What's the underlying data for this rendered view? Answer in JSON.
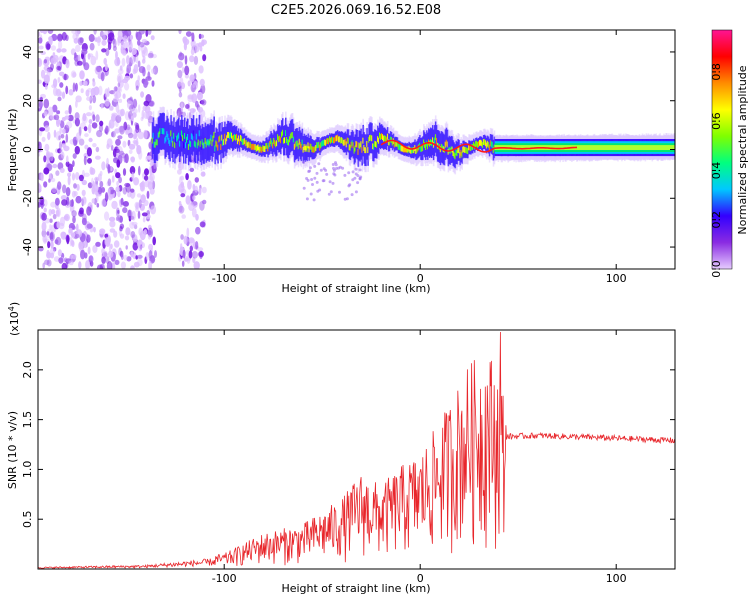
{
  "title": "C2E5.2026.069.16.52.E08",
  "chart_data": [
    {
      "type": "heatmap",
      "id": "spectrogram",
      "xlabel": "Height of straight line (km)",
      "ylabel": "Frequency (Hz)",
      "xlim": [
        -195,
        130
      ],
      "ylim": [
        -49,
        49
      ],
      "xticks": [
        -100,
        0,
        100
      ],
      "yticks": [
        -40,
        -20,
        0,
        20,
        40
      ],
      "ytick_labels": [
        "-40",
        "-20",
        "0",
        "20",
        "40"
      ],
      "xtick_labels": [
        "-100",
        "0",
        "100"
      ],
      "colorbar": {
        "label": "Normalized spectral amplitude",
        "range": [
          0.0,
          0.97
        ],
        "ticks": [
          0.0,
          0.2,
          0.4,
          0.6,
          0.8
        ],
        "tick_labels": [
          "0.0",
          "0.2",
          "0.4",
          "0.6",
          "0.8"
        ],
        "colors": [
          "#e6ccff",
          "#8a2be2",
          "#3300ff",
          "#00c8ff",
          "#00ff7f",
          "#7fff00",
          "#ffff00",
          "#ff8c00",
          "#ff0000",
          "#ff1493"
        ]
      },
      "regions": [
        {
          "name": "noise",
          "x_range": [
            -195,
            -135
          ],
          "amplitude": 0.1
        },
        {
          "name": "noise-gap",
          "x_range": [
            -123,
            -110
          ],
          "amplitude": 0.1
        },
        {
          "name": "turbulent-signal",
          "x_range": [
            -137,
            -105
          ],
          "center_hz": 5,
          "amplitude": 0.4
        },
        {
          "name": "wavy-signal",
          "x_range": [
            -105,
            38
          ],
          "center_hz": 2,
          "amplitude": 0.6
        },
        {
          "name": "steady-signal",
          "x_range": [
            38,
            130
          ],
          "center_hz": 0.5,
          "amplitude": 0.9
        }
      ],
      "ridge": [
        {
          "x": -137,
          "f": 5
        },
        {
          "x": -120,
          "f": 4
        },
        {
          "x": -105,
          "f": 4
        },
        {
          "x": -90,
          "f": 2
        },
        {
          "x": -70,
          "f": 3
        },
        {
          "x": -50,
          "f": 2
        },
        {
          "x": -30,
          "f": 3
        },
        {
          "x": -10,
          "f": 2
        },
        {
          "x": 10,
          "f": 1
        },
        {
          "x": 30,
          "f": 0.5
        },
        {
          "x": 60,
          "f": 0.5
        },
        {
          "x": 100,
          "f": 0.8
        },
        {
          "x": 130,
          "f": 1
        }
      ]
    },
    {
      "type": "line",
      "id": "snr",
      "xlabel": "Height of straight line (km)",
      "ylabel": "SNR (10 * v/v)",
      "multiplier": "(x10",
      "multiplier_exp": "4",
      "multiplier_close": ")",
      "xlim": [
        -195,
        130
      ],
      "ylim": [
        0,
        2.4
      ],
      "xticks": [
        -100,
        0,
        100
      ],
      "xtick_labels": [
        "-100",
        "0",
        "100"
      ],
      "yticks": [
        0.5,
        1.0,
        1.5,
        2.0
      ],
      "ytick_labels": [
        "0.5",
        "1.0",
        "1.5",
        "2.0"
      ],
      "color": "#e8262b",
      "envelope": [
        {
          "x": -195,
          "y": 0.02
        },
        {
          "x": -140,
          "y": 0.04
        },
        {
          "x": -125,
          "y": 0.07
        },
        {
          "x": -100,
          "y": 0.12
        },
        {
          "x": -80,
          "y": 0.28
        },
        {
          "x": -60,
          "y": 0.35
        },
        {
          "x": -40,
          "y": 0.55
        },
        {
          "x": -30,
          "y": 0.75
        },
        {
          "x": -20,
          "y": 0.65
        },
        {
          "x": -10,
          "y": 0.8
        },
        {
          "x": 0,
          "y": 0.9
        },
        {
          "x": 10,
          "y": 1.15
        },
        {
          "x": 25,
          "y": 1.6
        },
        {
          "x": 35,
          "y": 1.7
        },
        {
          "x": 40,
          "y": 1.55
        },
        {
          "x": 44,
          "y": 1.33
        },
        {
          "x": 60,
          "y": 1.34
        },
        {
          "x": 90,
          "y": 1.32
        },
        {
          "x": 130,
          "y": 1.29
        }
      ],
      "peak": {
        "x": 41,
        "y": 2.38
      }
    }
  ]
}
